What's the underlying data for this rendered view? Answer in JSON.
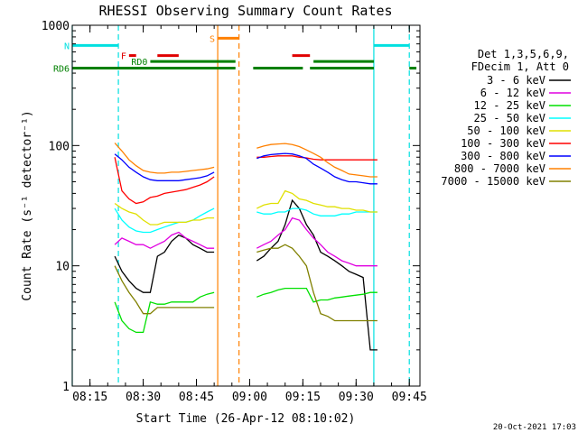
{
  "chart_data": {
    "type": "line",
    "title": "RHESSI Observing Summary Count Rates",
    "xlabel": "Start Time (26-Apr-12 08:10:02)",
    "ylabel": "Count Rate (s⁻¹ detector⁻¹)",
    "yscale": "log",
    "ylim": [
      1,
      1000
    ],
    "xlim": [
      "08:10",
      "09:48"
    ],
    "x_ticks": [
      "08:15",
      "08:30",
      "08:45",
      "09:00",
      "09:15",
      "09:30",
      "09:45"
    ],
    "y_ticks": [
      "1",
      "10",
      "100",
      "1000"
    ],
    "footer_date": "20-Oct-2021 17:03",
    "legend": {
      "placement": "right",
      "header": [
        "Det 1,3,5,6,9,",
        "FDecim 1, Att 0"
      ]
    },
    "state_bars": [
      {
        "label": "N",
        "color": "#00e0e0",
        "level": 680,
        "segments": [
          [
            "08:10",
            "08:23"
          ],
          [
            "09:35",
            "09:45"
          ]
        ]
      },
      {
        "label": "F",
        "color": "#e00000",
        "level": 560,
        "segments": [
          [
            "08:26",
            "08:28"
          ],
          [
            "08:34",
            "08:40"
          ],
          [
            "09:12",
            "09:17"
          ]
        ]
      },
      {
        "label": "RD0",
        "color": "#008000",
        "level": 500,
        "segments": [
          [
            "08:32",
            "08:56"
          ],
          [
            "09:18",
            "09:35"
          ]
        ]
      },
      {
        "label": "RD6",
        "color": "#008000",
        "level": 440,
        "segments": [
          [
            "08:10",
            "08:56"
          ],
          [
            "09:01",
            "09:15"
          ],
          [
            "09:17",
            "09:35"
          ],
          [
            "09:45",
            "09:47"
          ]
        ]
      },
      {
        "label": "S",
        "color": "#ff8000",
        "level": 780,
        "segments": [
          [
            "08:51",
            "08:57"
          ]
        ]
      }
    ],
    "markers": [
      {
        "time": "08:10",
        "color": "#00e0e0",
        "style": "solid"
      },
      {
        "time": "08:23",
        "color": "#00e0e0",
        "style": "dashed"
      },
      {
        "time": "08:51",
        "color": "#ff8000",
        "style": "solid"
      },
      {
        "time": "08:57",
        "color": "#ff8000",
        "style": "dashed"
      },
      {
        "time": "09:35",
        "color": "#00e0e0",
        "style": "solid"
      },
      {
        "time": "09:45",
        "color": "#00e0e0",
        "style": "dashed"
      }
    ],
    "x": [
      "08:22",
      "08:24",
      "08:26",
      "08:28",
      "08:30",
      "08:32",
      "08:34",
      "08:36",
      "08:38",
      "08:40",
      "08:42",
      "08:44",
      "08:46",
      "08:48",
      "08:50",
      "08:54",
      "08:58",
      "09:02",
      "09:04",
      "09:06",
      "09:08",
      "09:10",
      "09:12",
      "09:14",
      "09:16",
      "09:18",
      "09:20",
      "09:22",
      "09:24",
      "09:26",
      "09:28",
      "09:30",
      "09:32",
      "09:34",
      "09:36"
    ],
    "series": [
      {
        "name": "3 - 6 keV",
        "color": "#000000",
        "values": [
          12,
          9,
          7.5,
          6.5,
          6,
          6,
          12,
          13,
          16,
          18,
          17,
          15,
          14,
          13,
          13,
          null,
          null,
          11,
          12,
          14,
          16,
          22,
          35,
          30,
          22,
          18,
          13,
          12,
          11,
          10,
          9,
          8.5,
          8,
          2,
          2
        ]
      },
      {
        "name": "6 - 12 keV",
        "color": "#e000e0",
        "values": [
          15,
          17,
          16,
          15,
          15,
          14,
          15,
          16,
          18,
          19,
          17,
          16,
          15,
          14,
          14,
          null,
          null,
          14,
          15,
          16,
          18,
          20,
          25,
          24,
          20,
          17,
          15,
          13,
          12,
          11,
          10.5,
          10,
          10,
          10,
          10
        ]
      },
      {
        "name": "12 - 25 keV",
        "color": "#00e000",
        "values": [
          5,
          3.5,
          3,
          2.8,
          2.8,
          5,
          4.8,
          4.8,
          5,
          5,
          5,
          5,
          5.5,
          5.8,
          6,
          null,
          null,
          5.5,
          5.8,
          6,
          6.3,
          6.5,
          6.5,
          6.5,
          6.5,
          5,
          5.2,
          5.2,
          5.4,
          5.5,
          5.6,
          5.7,
          5.8,
          6,
          6
        ]
      },
      {
        "name": "25 - 50 keV",
        "color": "#00ffff",
        "values": [
          30,
          24,
          21,
          19.5,
          19,
          19,
          20,
          21,
          22,
          23,
          23,
          24,
          26,
          28,
          30,
          null,
          null,
          28,
          27,
          27,
          28,
          28,
          30,
          30,
          29,
          27,
          26,
          26,
          26,
          27,
          27,
          28,
          28,
          28,
          28
        ]
      },
      {
        "name": "50 - 100 keV",
        "color": "#e0e000",
        "values": [
          33,
          30,
          28,
          27,
          24,
          22,
          22,
          23,
          23,
          23,
          23,
          24,
          24,
          25,
          25,
          null,
          null,
          30,
          32,
          33,
          33,
          42,
          40,
          36,
          35,
          33,
          32,
          31,
          31,
          30,
          30,
          29,
          29,
          28,
          28
        ]
      },
      {
        "name": "100 - 300 keV",
        "color": "#ff0000",
        "values": [
          80,
          42,
          36,
          33,
          34,
          37,
          38,
          40,
          41,
          42,
          43,
          45,
          47,
          50,
          55,
          null,
          null,
          80,
          80,
          81,
          82,
          82,
          82,
          80,
          79,
          77,
          76,
          76,
          76,
          76,
          76,
          76,
          76,
          76,
          76
        ]
      },
      {
        "name": "300 - 800 keV",
        "color": "#0000ff",
        "values": [
          85,
          76,
          66,
          60,
          55,
          52,
          51,
          51,
          51,
          51,
          52,
          53,
          54,
          56,
          60,
          null,
          null,
          78,
          82,
          84,
          85,
          86,
          85,
          82,
          78,
          70,
          65,
          60,
          55,
          52,
          50,
          50,
          49,
          48,
          48
        ]
      },
      {
        "name": "800 - 7000 keV",
        "color": "#ff8000",
        "values": [
          105,
          90,
          76,
          68,
          62,
          60,
          59,
          59,
          60,
          60,
          61,
          62,
          63,
          64,
          66,
          null,
          null,
          95,
          99,
          102,
          103,
          104,
          102,
          98,
          92,
          86,
          80,
          72,
          66,
          62,
          58,
          57,
          56,
          55,
          55
        ]
      },
      {
        "name": "7000 - 15000 keV",
        "color": "#808000",
        "values": [
          10,
          7.5,
          6,
          5,
          4,
          4,
          4.5,
          4.5,
          4.5,
          4.5,
          4.5,
          4.5,
          4.5,
          4.5,
          4.5,
          null,
          null,
          13,
          13.5,
          14,
          14,
          15,
          14,
          12,
          10,
          6,
          4,
          3.8,
          3.5,
          3.5,
          3.5,
          3.5,
          3.5,
          3.5,
          3.5
        ]
      }
    ]
  }
}
